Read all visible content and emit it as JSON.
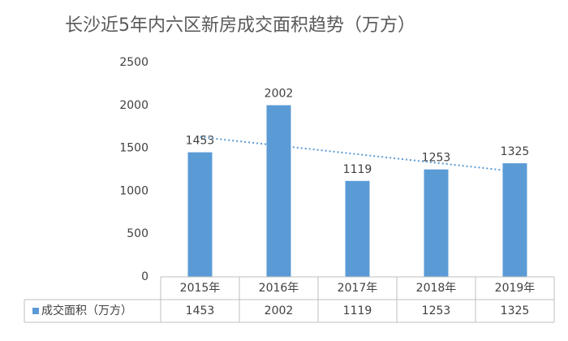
{
  "chart_data": {
    "type": "bar",
    "title": "长沙近5年内六区新房成交面积趋势（万方）",
    "categories": [
      "2015年",
      "2016年",
      "2017年",
      "2018年",
      "2019年"
    ],
    "series": [
      {
        "name": "成交面积（万方）",
        "color": "#5b9bd5",
        "values": [
          1453,
          2002,
          1119,
          1253,
          1325
        ]
      }
    ],
    "ylim": [
      0,
      2500
    ],
    "yticks": [
      0,
      500,
      1000,
      1500,
      2000,
      2500
    ],
    "grid": false,
    "trendline": "linear",
    "data_table": true
  }
}
